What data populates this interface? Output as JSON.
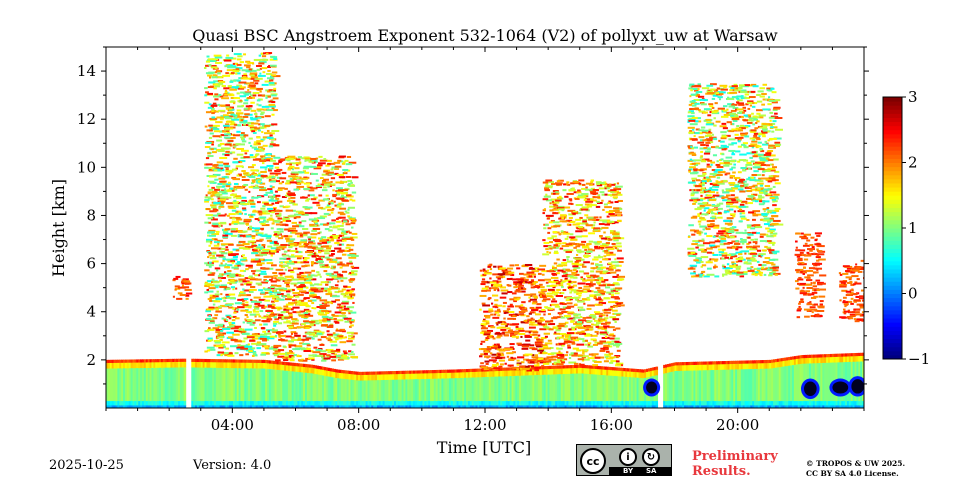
{
  "chart_data": {
    "type": "heatmap",
    "title": "Quasi BSC Angstroem Exponent 532-1064 (V2) of pollyxt_uw at Warsaw",
    "xlabel": "Time [UTC]",
    "ylabel": "Height [km]",
    "xlim": [
      0,
      24
    ],
    "ylim": [
      0,
      15
    ],
    "xticks": [
      4,
      8,
      12,
      16,
      20
    ],
    "xtick_labels": [
      "04:00",
      "08:00",
      "12:00",
      "16:00",
      "20:00"
    ],
    "yticks": [
      2,
      4,
      6,
      8,
      10,
      12,
      14
    ],
    "ytick_labels": [
      "2",
      "4",
      "6",
      "8",
      "10",
      "12",
      "14"
    ],
    "colorbar": {
      "min": -1,
      "max": 3,
      "ticks": [
        -1,
        0,
        1,
        2,
        3
      ],
      "tick_labels": [
        "−1",
        "0",
        "1",
        "2",
        "3"
      ],
      "colormap": "jet"
    },
    "boundary_layer": {
      "description_units": "height in km vs time in hours",
      "top_height": [
        [
          0,
          2.0
        ],
        [
          2.5,
          2.05
        ],
        [
          5,
          2.0
        ],
        [
          6.5,
          1.8
        ],
        [
          7.3,
          1.6
        ],
        [
          8,
          1.5
        ],
        [
          11,
          1.6
        ],
        [
          13,
          1.7
        ],
        [
          15,
          1.8
        ],
        [
          17,
          1.6
        ],
        [
          18,
          1.9
        ],
        [
          21,
          2.0
        ],
        [
          22,
          2.2
        ],
        [
          24,
          2.3
        ]
      ],
      "typical_value": 1.0
    },
    "data_gaps_hours": [
      [
        2.55,
        2.7
      ],
      [
        17.45,
        17.65
      ]
    ],
    "low_value_patches": [
      {
        "x": [
          17.1,
          17.45
        ],
        "y": [
          0.6,
          1.1
        ],
        "value": -1.0
      },
      {
        "x": [
          22.1,
          22.5
        ],
        "y": [
          0.5,
          1.1
        ],
        "value": -1.0
      },
      {
        "x": [
          23.0,
          23.5
        ],
        "y": [
          0.6,
          1.1
        ],
        "value": -1.0
      },
      {
        "x": [
          23.6,
          24.0
        ],
        "y": [
          0.6,
          1.2
        ],
        "value": -1.0
      }
    ],
    "aerosol_regions": [
      {
        "x": [
          3.1,
          5.3
        ],
        "y": [
          2.2,
          14.8
        ],
        "value_range": [
          0.5,
          2.5
        ]
      },
      {
        "x": [
          5.3,
          7.8
        ],
        "y": [
          2.0,
          10.5
        ],
        "value_range": [
          0.8,
          2.6
        ]
      },
      {
        "x": [
          2.1,
          2.6
        ],
        "y": [
          4.5,
          5.5
        ],
        "value_range": [
          1.8,
          2.6
        ]
      },
      {
        "x": [
          11.8,
          13.8
        ],
        "y": [
          1.6,
          6.0
        ],
        "value_range": [
          1.5,
          2.8
        ]
      },
      {
        "x": [
          13.8,
          16.2
        ],
        "y": [
          1.8,
          9.5
        ],
        "value_range": [
          1.0,
          2.6
        ]
      },
      {
        "x": [
          18.4,
          21.2
        ],
        "y": [
          5.5,
          13.5
        ],
        "value_range": [
          0.5,
          2.5
        ]
      },
      {
        "x": [
          21.8,
          22.6
        ],
        "y": [
          3.8,
          7.3
        ],
        "value_range": [
          1.9,
          2.5
        ]
      },
      {
        "x": [
          23.2,
          24.0
        ],
        "y": [
          3.6,
          6.2
        ],
        "value_range": [
          1.9,
          2.5
        ]
      }
    ]
  },
  "footer": {
    "date": "2025-10-25",
    "version": "Version: 4.0",
    "license_icons": [
      "cc-icon",
      "by-icon",
      "sa-icon"
    ],
    "license_cc": "cc",
    "license_by": "BY",
    "license_sa": "SA",
    "preliminary_line1": "Preliminary",
    "preliminary_line2": "Results.",
    "copyright_line1": "© TROPOS & UW 2025.",
    "copyright_line2": "CC BY SA 4.0 License."
  },
  "colors": {
    "preliminary": "#e8383d",
    "badge_bg": "#aab2ab"
  }
}
